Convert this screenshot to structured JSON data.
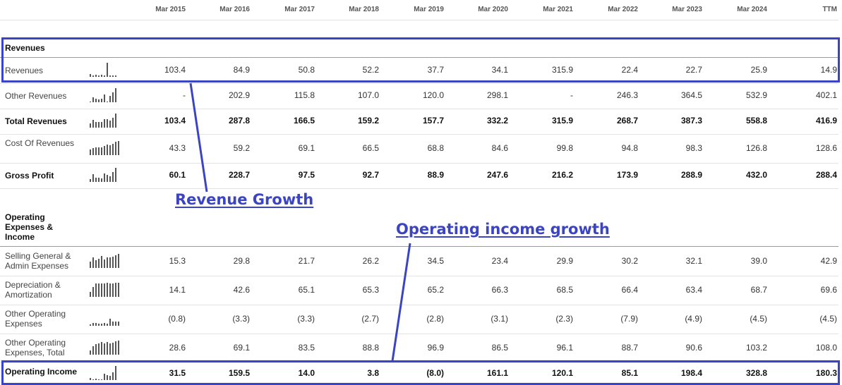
{
  "columns": [
    "Mar 2015",
    "Mar 2016",
    "Mar 2017",
    "Mar 2018",
    "Mar 2019",
    "Mar 2020",
    "Mar 2021",
    "Mar 2022",
    "Mar 2023",
    "Mar 2024",
    "TTM"
  ],
  "sections": {
    "revenues_heading": "Revenues",
    "operating_heading": "Operating Expenses & Income"
  },
  "rows": [
    {
      "label": "Revenues",
      "bold": false,
      "values": [
        "103.4",
        "84.9",
        "50.8",
        "52.2",
        "37.7",
        "34.1",
        "315.9",
        "22.4",
        "22.7",
        "25.9",
        "14.9"
      ],
      "spark": [
        0.2,
        0.1,
        0.15,
        0.1,
        0.15,
        0.12,
        1,
        0.1,
        0.1,
        0.1
      ]
    },
    {
      "label": "Other Revenues",
      "bold": false,
      "values": [
        "-",
        "202.9",
        "115.8",
        "107.0",
        "120.0",
        "298.1",
        "-",
        "246.3",
        "364.5",
        "532.9",
        "402.1"
      ],
      "spark": [
        0,
        0.35,
        0.25,
        0.22,
        0.25,
        0.55,
        0,
        0.45,
        0.7,
        1
      ]
    },
    {
      "label": "Total Revenues",
      "bold": true,
      "values": [
        "103.4",
        "287.8",
        "166.5",
        "159.2",
        "157.7",
        "332.2",
        "315.9",
        "268.7",
        "387.3",
        "558.8",
        "416.9"
      ],
      "spark": [
        0.3,
        0.55,
        0.4,
        0.38,
        0.38,
        0.62,
        0.6,
        0.52,
        0.72,
        1
      ]
    },
    {
      "label": "Cost Of Revenues",
      "bold": false,
      "values": [
        "43.3",
        "59.2",
        "69.1",
        "66.5",
        "68.8",
        "84.6",
        "99.8",
        "94.8",
        "98.3",
        "126.8",
        "128.6"
      ],
      "spark": [
        0.4,
        0.5,
        0.55,
        0.55,
        0.56,
        0.66,
        0.76,
        0.72,
        0.78,
        0.96,
        1
      ]
    },
    {
      "label": "Gross Profit",
      "bold": true,
      "values": [
        "60.1",
        "228.7",
        "97.5",
        "92.7",
        "88.9",
        "247.6",
        "216.2",
        "173.9",
        "288.9",
        "432.0",
        "288.4"
      ],
      "spark": [
        0.2,
        0.55,
        0.3,
        0.28,
        0.27,
        0.6,
        0.5,
        0.42,
        0.68,
        1
      ]
    },
    {
      "label": "Selling General & Admin Expenses",
      "bold": false,
      "values": [
        "15.3",
        "29.8",
        "21.7",
        "26.2",
        "34.5",
        "23.4",
        "29.9",
        "30.2",
        "32.1",
        "39.0",
        "42.9"
      ],
      "spark": [
        0.45,
        0.75,
        0.55,
        0.65,
        0.85,
        0.6,
        0.75,
        0.75,
        0.8,
        0.92,
        1
      ]
    },
    {
      "label": "Depreciation & Amortization",
      "bold": false,
      "values": [
        "14.1",
        "42.6",
        "65.1",
        "65.3",
        "65.2",
        "66.3",
        "68.5",
        "66.4",
        "63.4",
        "68.7",
        "69.6"
      ],
      "spark": [
        0.35,
        0.7,
        0.95,
        0.95,
        0.95,
        0.96,
        0.98,
        0.96,
        0.93,
        0.99,
        1
      ]
    },
    {
      "label": "Other Operating Expenses",
      "bold": false,
      "values": [
        "(0.8)",
        "(3.3)",
        "(3.3)",
        "(2.7)",
        "(2.8)",
        "(3.1)",
        "(2.3)",
        "(7.9)",
        "(4.9)",
        "(4.5)",
        "(4.5)"
      ],
      "spark": [
        0.08,
        0.2,
        0.2,
        0.16,
        0.17,
        0.19,
        0.14,
        0.5,
        0.32,
        0.3,
        0.3
      ]
    },
    {
      "label": "Other Operating Expenses, Total",
      "bold": false,
      "values": [
        "28.6",
        "69.1",
        "83.5",
        "88.8",
        "96.9",
        "86.5",
        "96.1",
        "88.7",
        "90.6",
        "103.2",
        "108.0"
      ],
      "spark": [
        0.3,
        0.62,
        0.77,
        0.82,
        0.9,
        0.8,
        0.88,
        0.82,
        0.84,
        0.96,
        1
      ]
    },
    {
      "label": "Operating Income",
      "bold": true,
      "values": [
        "31.5",
        "159.5",
        "14.0",
        "3.8",
        "(8.0)",
        "161.1",
        "120.1",
        "85.1",
        "198.4",
        "328.8",
        "180.3"
      ],
      "spark": [
        0.15,
        0,
        0.08,
        0.05,
        0,
        0.45,
        0.35,
        0.28,
        0.55,
        1
      ]
    }
  ],
  "annotations": {
    "revenue_growth": "Revenue Growth",
    "operating_income_growth": "Operating income growth"
  },
  "colors": {
    "accent": "#3b44c4",
    "spark": "#555555"
  }
}
